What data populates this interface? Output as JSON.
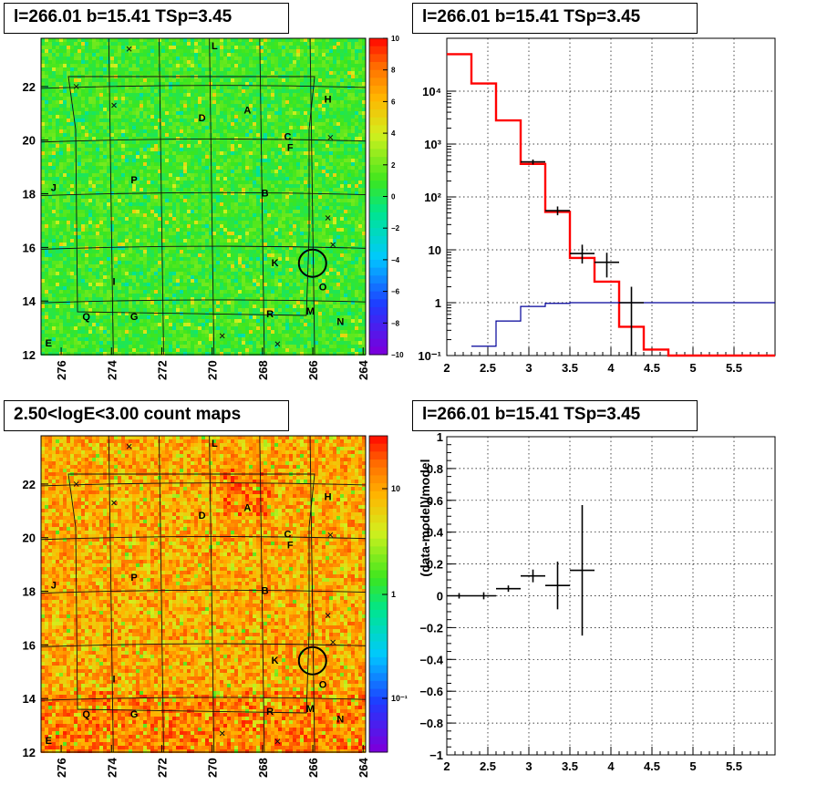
{
  "panels": {
    "tl": {
      "title": "l=266.01 b=15.41 TSp=3.45"
    },
    "tr": {
      "title": "l=266.01 b=15.41 TSp=3.45"
    },
    "bl": {
      "title": "2.50<logE<3.00 count maps"
    },
    "br": {
      "title": "l=266.01 b=15.41 TSp=3.45"
    }
  },
  "colors": {
    "model_line": "#ff0000",
    "background_line": "#000099",
    "data": "#000000"
  },
  "chart_data": [
    {
      "type": "heatmap",
      "panel": "top-left",
      "title": "l=266.01 b=15.41 TSp=3.45",
      "x_ticks": [
        "276",
        "274",
        "272",
        "270",
        "268",
        "266",
        "264"
      ],
      "y_ticks": [
        "12",
        "14",
        "16",
        "18",
        "20",
        "22"
      ],
      "xlim": [
        276.8,
        263.9
      ],
      "ylim": [
        12,
        23.8
      ],
      "colorbar": {
        "min": -10,
        "max": 10,
        "ticks": [
          "10",
          "8",
          "6",
          "4",
          "2",
          "0",
          "−2",
          "−4",
          "−6",
          "−8",
          "−10"
        ]
      },
      "source_labels": [
        {
          "t": "L",
          "x": 269.9,
          "y": 23.4
        },
        {
          "t": "A",
          "x": 268.6,
          "y": 21.0
        },
        {
          "t": "H",
          "x": 265.4,
          "y": 21.4
        },
        {
          "t": "D",
          "x": 270.4,
          "y": 20.7
        },
        {
          "t": "C",
          "x": 267.0,
          "y": 20.0
        },
        {
          "t": "F",
          "x": 266.9,
          "y": 19.6
        },
        {
          "t": "J",
          "x": 276.3,
          "y": 18.1
        },
        {
          "t": "P",
          "x": 273.1,
          "y": 18.4
        },
        {
          "t": "B",
          "x": 267.9,
          "y": 17.9
        },
        {
          "t": "K",
          "x": 267.5,
          "y": 15.3
        },
        {
          "t": "I",
          "x": 273.9,
          "y": 14.6
        },
        {
          "t": "O",
          "x": 265.6,
          "y": 14.4
        },
        {
          "t": "Q",
          "x": 275.0,
          "y": 13.3
        },
        {
          "t": "G",
          "x": 273.1,
          "y": 13.3
        },
        {
          "t": "R",
          "x": 267.7,
          "y": 13.4
        },
        {
          "t": "M",
          "x": 266.1,
          "y": 13.5
        },
        {
          "t": "N",
          "x": 264.9,
          "y": 13.1
        },
        {
          "t": "E",
          "x": 276.5,
          "y": 12.3
        }
      ],
      "circle": {
        "x": 266.01,
        "y": 15.41
      }
    },
    {
      "type": "line",
      "panel": "top-right",
      "title": "l=266.01 b=15.41 TSp=3.45",
      "log_y": true,
      "xlim": [
        2,
        6
      ],
      "ylim": [
        0.1,
        100000
      ],
      "x_ticks": [
        "2",
        "2.5",
        "3",
        "3.5",
        "4",
        "4.5",
        "5",
        "5.5"
      ],
      "y_ticks": [
        "10⁻¹",
        "1",
        "10",
        "10²",
        "10³",
        "10⁴"
      ],
      "series": [
        {
          "style": "step",
          "color": "red",
          "edges": [
            2,
            2.3,
            2.6,
            2.9,
            3.2,
            3.5,
            3.8,
            4.1,
            4.4,
            4.7,
            5.0,
            6.0
          ],
          "values": [
            50000,
            14000,
            2800,
            420,
            52,
            7,
            2.5,
            0.35,
            0.13,
            0.1,
            0.1
          ]
        },
        {
          "style": "step",
          "color": "blue",
          "edges": [
            2.3,
            2.6,
            2.9,
            3.2,
            3.5,
            3.8,
            4.1,
            6.0
          ],
          "values": [
            0.15,
            0.45,
            0.85,
            0.97,
            1.0,
            1.0,
            1.0
          ]
        },
        {
          "style": "errorbar",
          "color": "black",
          "points": [
            {
              "x": 3.05,
              "y": 460,
              "xerr": 0.15,
              "ylo": 410,
              "yhi": 510
            },
            {
              "x": 3.35,
              "y": 55,
              "xerr": 0.15,
              "ylo": 45,
              "yhi": 66
            },
            {
              "x": 3.65,
              "y": 8.5,
              "xerr": 0.15,
              "ylo": 5.5,
              "yhi": 12.5
            },
            {
              "x": 3.95,
              "y": 5.8,
              "xerr": 0.15,
              "ylo": 3.0,
              "yhi": 8.8
            },
            {
              "x": 4.25,
              "y": 1.0,
              "xerr": 0.15,
              "ylo": 0.1,
              "yhi": 2.0
            }
          ]
        }
      ]
    },
    {
      "type": "heatmap",
      "panel": "bottom-left",
      "title": "2.50<logE<3.00 count maps",
      "x_ticks": [
        "276",
        "274",
        "272",
        "270",
        "268",
        "266",
        "264"
      ],
      "y_ticks": [
        "12",
        "14",
        "16",
        "18",
        "20",
        "22"
      ],
      "colorbar": {
        "log": true,
        "ticks": [
          "10",
          "1",
          "10⁻¹"
        ]
      },
      "circle": {
        "x": 266.01,
        "y": 15.41
      }
    },
    {
      "type": "scatter",
      "panel": "bottom-right",
      "title": "l=266.01 b=15.41 TSp=3.45",
      "ylabel": "(data-model)/model",
      "xlim": [
        2,
        6
      ],
      "ylim": [
        -1,
        1
      ],
      "x_ticks": [
        "2",
        "2.5",
        "3",
        "3.5",
        "4",
        "4.5",
        "5",
        "5.5"
      ],
      "y_ticks": [
        "1",
        "0.8",
        "0.6",
        "0.4",
        "0.2",
        "0",
        "−0.2",
        "−0.4",
        "−0.6",
        "−0.8",
        "−1"
      ],
      "points": [
        {
          "x": 2.15,
          "y": 0.0,
          "xerr": 0.15,
          "yerr": 0.0
        },
        {
          "x": 2.45,
          "y": 0.0,
          "xerr": 0.15,
          "yerr": 0.005
        },
        {
          "x": 2.75,
          "y": 0.045,
          "xerr": 0.15,
          "yerr": 0.02
        },
        {
          "x": 3.05,
          "y": 0.125,
          "xerr": 0.15,
          "yerr": 0.04
        },
        {
          "x": 3.35,
          "y": 0.065,
          "xerr": 0.15,
          "yerr": 0.15
        },
        {
          "x": 3.65,
          "y": 0.16,
          "xerr": 0.15,
          "yerr": 0.41
        }
      ]
    }
  ]
}
